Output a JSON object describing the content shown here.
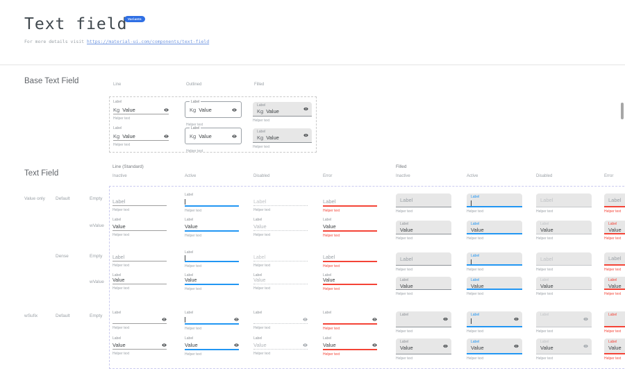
{
  "header": {
    "title": "Text field",
    "badge": "Variants",
    "subtitle_prefix": "For more details visit ",
    "subtitle_link": "https://material-ui.com/components/text-field"
  },
  "base_section": {
    "title": "Base Text Field",
    "columns": [
      "Line",
      "Outlined",
      "Filled"
    ],
    "field": {
      "label": "Label",
      "prefix": "Kg",
      "value": "Value",
      "helper": "Helper text"
    }
  },
  "matrix_section": {
    "title": "Text Field",
    "groups": [
      "Line (Standard)",
      "Filled"
    ],
    "states": [
      "Inactive",
      "Active",
      "Disabled",
      "Error"
    ],
    "row_labels": [
      {
        "row": 0,
        "col": 0,
        "text": "Value only"
      },
      {
        "row": 0,
        "col": 1,
        "text": "Default"
      },
      {
        "row": 0,
        "col": 2,
        "text": "Empty"
      },
      {
        "row": 1,
        "col": 2,
        "text": "wValue"
      },
      {
        "row": 2,
        "col": 1,
        "text": "Dense"
      },
      {
        "row": 2,
        "col": 2,
        "text": "Empty"
      },
      {
        "row": 3,
        "col": 2,
        "text": "wValue"
      },
      {
        "row": 4,
        "col": 0,
        "text": "wSufix"
      },
      {
        "row": 4,
        "col": 1,
        "text": "Default"
      },
      {
        "row": 4,
        "col": 2,
        "text": "Empty"
      }
    ],
    "field": {
      "label": "Label",
      "value": "Value",
      "helper": "Helper text"
    },
    "suffix_icon": "visibility-icon"
  },
  "colors": {
    "accent_blue": "#2196f3",
    "error_red": "#f44336",
    "badge_blue": "#2f6fe4",
    "link_blue": "#7096e0",
    "filled_bg": "#e7e7e7"
  }
}
